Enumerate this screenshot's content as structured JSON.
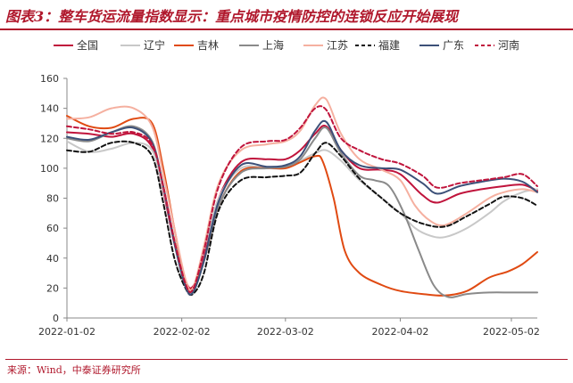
{
  "figure": {
    "title": "图表3：整车货运流量指数显示：重点城市疫情防控的连锁反应开始展现",
    "source": "来源：Wind，中泰证券研究所"
  },
  "chart_data": {
    "type": "line",
    "x_ticks": [
      "2022-01-02",
      "2022-02-02",
      "2022-03-02",
      "2022-04-02",
      "2022-05-02"
    ],
    "y_ticks": [
      "0",
      "20",
      "40",
      "60",
      "80",
      "100",
      "120",
      "140",
      "160"
    ],
    "ylim": [
      0,
      160
    ],
    "xlim": [
      "2022-01-02",
      "2022-05-09"
    ],
    "grid": false,
    "legend_position": "top",
    "series": [
      {
        "name": "全国",
        "color": "#c0143c",
        "dash": "solid",
        "x": [
          "2022-01-02",
          "2022-01-08",
          "2022-01-14",
          "2022-01-20",
          "2022-01-25",
          "2022-01-28",
          "2022-01-31",
          "2022-02-03",
          "2022-02-05",
          "2022-02-08",
          "2022-02-12",
          "2022-02-18",
          "2022-02-25",
          "2022-03-02",
          "2022-03-06",
          "2022-03-10",
          "2022-03-13",
          "2022-03-17",
          "2022-03-22",
          "2022-03-28",
          "2022-04-02",
          "2022-04-08",
          "2022-04-12",
          "2022-04-18",
          "2022-04-24",
          "2022-04-30",
          "2022-05-05",
          "2022-05-09"
        ],
        "y": [
          124,
          123,
          121,
          123,
          114,
          85,
          50,
          25,
          21,
          40,
          80,
          104,
          106,
          106,
          112,
          123,
          128,
          112,
          100,
          99,
          96,
          82,
          77,
          83,
          86,
          88,
          89,
          85
        ]
      },
      {
        "name": "辽宁",
        "color": "#c8c8c8",
        "dash": "solid",
        "x": [
          "2022-01-02",
          "2022-01-08",
          "2022-01-14",
          "2022-01-20",
          "2022-01-25",
          "2022-01-28",
          "2022-01-31",
          "2022-02-03",
          "2022-02-05",
          "2022-02-08",
          "2022-02-12",
          "2022-02-18",
          "2022-02-25",
          "2022-03-02",
          "2022-03-06",
          "2022-03-10",
          "2022-03-13",
          "2022-03-17",
          "2022-03-22",
          "2022-03-28",
          "2022-04-02",
          "2022-04-06",
          "2022-04-10",
          "2022-04-14",
          "2022-04-20",
          "2022-04-26",
          "2022-04-30",
          "2022-05-05",
          "2022-05-09"
        ],
        "y": [
          118,
          111,
          113,
          117,
          112,
          86,
          52,
          24,
          18,
          45,
          80,
          100,
          100,
          100,
          105,
          110,
          112,
          105,
          92,
          80,
          70,
          60,
          55,
          54,
          60,
          70,
          78,
          84,
          86
        ]
      },
      {
        "name": "吉林",
        "color": "#e04a12",
        "dash": "solid",
        "x": [
          "2022-01-02",
          "2022-01-08",
          "2022-01-14",
          "2022-01-20",
          "2022-01-25",
          "2022-01-28",
          "2022-01-31",
          "2022-02-03",
          "2022-02-05",
          "2022-02-08",
          "2022-02-12",
          "2022-02-18",
          "2022-02-25",
          "2022-03-02",
          "2022-03-06",
          "2022-03-10",
          "2022-03-12",
          "2022-03-15",
          "2022-03-18",
          "2022-03-22",
          "2022-03-28",
          "2022-04-02",
          "2022-04-08",
          "2022-04-14",
          "2022-04-20",
          "2022-04-26",
          "2022-05-01",
          "2022-05-05",
          "2022-05-09"
        ],
        "y": [
          135,
          128,
          127,
          133,
          130,
          100,
          60,
          24,
          20,
          38,
          75,
          98,
          100,
          100,
          104,
          108,
          105,
          80,
          45,
          30,
          22,
          18,
          16,
          15,
          18,
          27,
          31,
          36,
          44
        ]
      },
      {
        "name": "上海",
        "color": "#8a8a8a",
        "dash": "solid",
        "x": [
          "2022-01-02",
          "2022-01-08",
          "2022-01-14",
          "2022-01-20",
          "2022-01-25",
          "2022-01-28",
          "2022-01-31",
          "2022-02-03",
          "2022-02-05",
          "2022-02-08",
          "2022-02-12",
          "2022-02-18",
          "2022-02-25",
          "2022-03-02",
          "2022-03-06",
          "2022-03-10",
          "2022-03-13",
          "2022-03-17",
          "2022-03-22",
          "2022-03-26",
          "2022-03-30",
          "2022-04-03",
          "2022-04-07",
          "2022-04-11",
          "2022-04-15",
          "2022-04-20",
          "2022-04-26",
          "2022-05-02",
          "2022-05-09"
        ],
        "y": [
          120,
          118,
          124,
          128,
          118,
          88,
          52,
          22,
          17,
          38,
          75,
          97,
          100,
          101,
          106,
          120,
          127,
          110,
          95,
          92,
          88,
          70,
          45,
          22,
          14,
          16,
          17,
          17,
          17
        ]
      },
      {
        "name": "江苏",
        "color": "#f5b0a0",
        "dash": "solid",
        "x": [
          "2022-01-02",
          "2022-01-08",
          "2022-01-14",
          "2022-01-20",
          "2022-01-25",
          "2022-01-28",
          "2022-01-31",
          "2022-02-03",
          "2022-02-05",
          "2022-02-08",
          "2022-02-12",
          "2022-02-18",
          "2022-02-25",
          "2022-03-02",
          "2022-03-06",
          "2022-03-10",
          "2022-03-13",
          "2022-03-17",
          "2022-03-22",
          "2022-03-28",
          "2022-04-02",
          "2022-04-06",
          "2022-04-10",
          "2022-04-14",
          "2022-04-20",
          "2022-04-26",
          "2022-04-30",
          "2022-05-05",
          "2022-05-09"
        ],
        "y": [
          133,
          134,
          140,
          140,
          128,
          96,
          60,
          26,
          20,
          48,
          90,
          112,
          116,
          118,
          125,
          142,
          146,
          123,
          106,
          99,
          92,
          75,
          65,
          62,
          70,
          80,
          84,
          86,
          84
        ]
      },
      {
        "name": "福建",
        "color": "#111111",
        "dash": "dashed",
        "x": [
          "2022-01-02",
          "2022-01-08",
          "2022-01-14",
          "2022-01-20",
          "2022-01-25",
          "2022-01-28",
          "2022-01-31",
          "2022-02-03",
          "2022-02-05",
          "2022-02-08",
          "2022-02-12",
          "2022-02-18",
          "2022-02-25",
          "2022-03-02",
          "2022-03-06",
          "2022-03-10",
          "2022-03-13",
          "2022-03-17",
          "2022-03-22",
          "2022-03-28",
          "2022-04-02",
          "2022-04-08",
          "2022-04-14",
          "2022-04-20",
          "2022-04-26",
          "2022-04-30",
          "2022-05-05",
          "2022-05-09"
        ],
        "y": [
          112,
          111,
          117,
          117,
          108,
          77,
          40,
          20,
          16,
          30,
          72,
          92,
          94,
          95,
          97,
          110,
          117,
          108,
          93,
          80,
          70,
          63,
          61,
          68,
          76,
          81,
          80,
          75
        ]
      },
      {
        "name": "广东",
        "color": "#3c5078",
        "dash": "solid",
        "x": [
          "2022-01-02",
          "2022-01-08",
          "2022-01-14",
          "2022-01-20",
          "2022-01-25",
          "2022-01-28",
          "2022-01-31",
          "2022-02-03",
          "2022-02-05",
          "2022-02-08",
          "2022-02-12",
          "2022-02-18",
          "2022-02-25",
          "2022-03-02",
          "2022-03-06",
          "2022-03-10",
          "2022-03-13",
          "2022-03-17",
          "2022-03-22",
          "2022-03-28",
          "2022-04-02",
          "2022-04-08",
          "2022-04-12",
          "2022-04-18",
          "2022-04-24",
          "2022-04-30",
          "2022-05-05",
          "2022-05-09"
        ],
        "y": [
          121,
          119,
          124,
          127,
          117,
          88,
          50,
          21,
          17,
          38,
          78,
          102,
          101,
          102,
          108,
          125,
          131,
          112,
          102,
          100,
          99,
          90,
          83,
          88,
          91,
          93,
          91,
          84
        ]
      },
      {
        "name": "河南",
        "color": "#c0143c",
        "dash": "dashed",
        "x": [
          "2022-01-02",
          "2022-01-08",
          "2022-01-14",
          "2022-01-20",
          "2022-01-25",
          "2022-01-28",
          "2022-01-31",
          "2022-02-03",
          "2022-02-05",
          "2022-02-08",
          "2022-02-12",
          "2022-02-18",
          "2022-02-25",
          "2022-03-02",
          "2022-03-06",
          "2022-03-10",
          "2022-03-13",
          "2022-03-17",
          "2022-03-22",
          "2022-03-28",
          "2022-04-02",
          "2022-04-08",
          "2022-04-12",
          "2022-04-18",
          "2022-04-24",
          "2022-04-30",
          "2022-05-05",
          "2022-05-09"
        ],
        "y": [
          128,
          126,
          123,
          124,
          116,
          88,
          52,
          23,
          19,
          45,
          88,
          114,
          118,
          119,
          127,
          140,
          139,
          120,
          112,
          106,
          103,
          95,
          87,
          90,
          92,
          94,
          96,
          88
        ]
      }
    ]
  }
}
